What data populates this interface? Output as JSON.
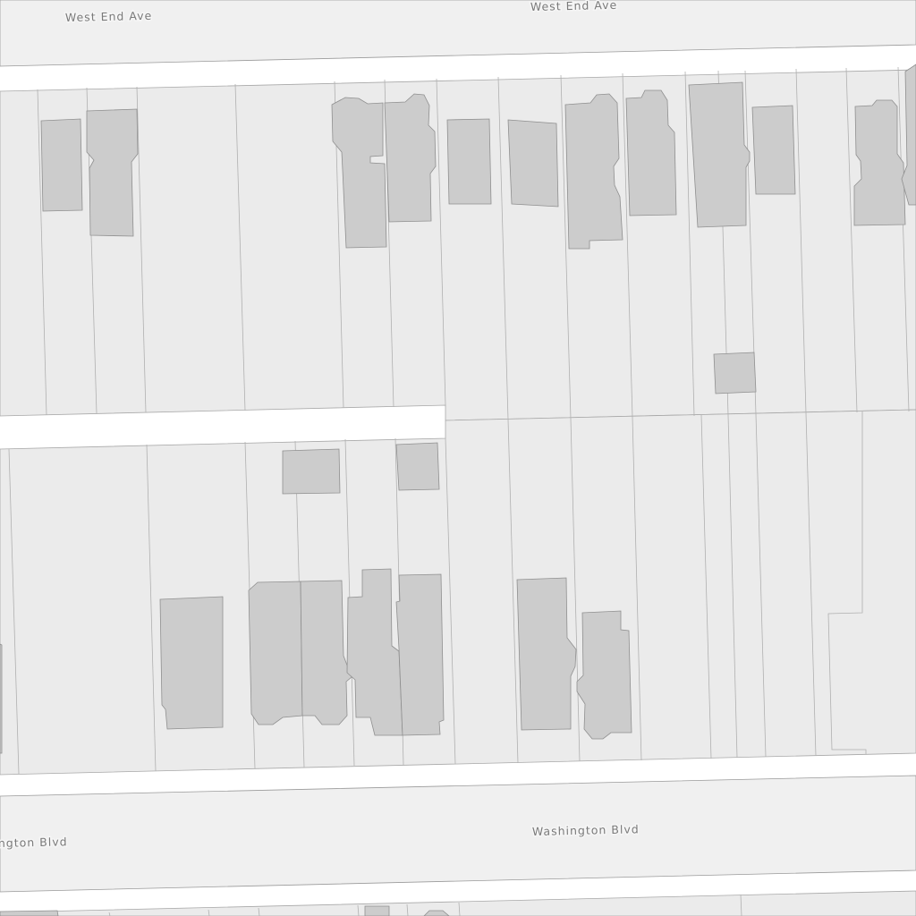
{
  "map": {
    "streets": [
      {
        "name": "West End Ave"
      },
      {
        "name": "West End Ave"
      },
      {
        "name": "Washington Blvd"
      },
      {
        "name": "ngton Blvd"
      }
    ],
    "colors": {
      "road": "#f0f0f0",
      "parcel": "#ebebeb",
      "building": "#cccccc",
      "alley": "#ffffff"
    }
  }
}
